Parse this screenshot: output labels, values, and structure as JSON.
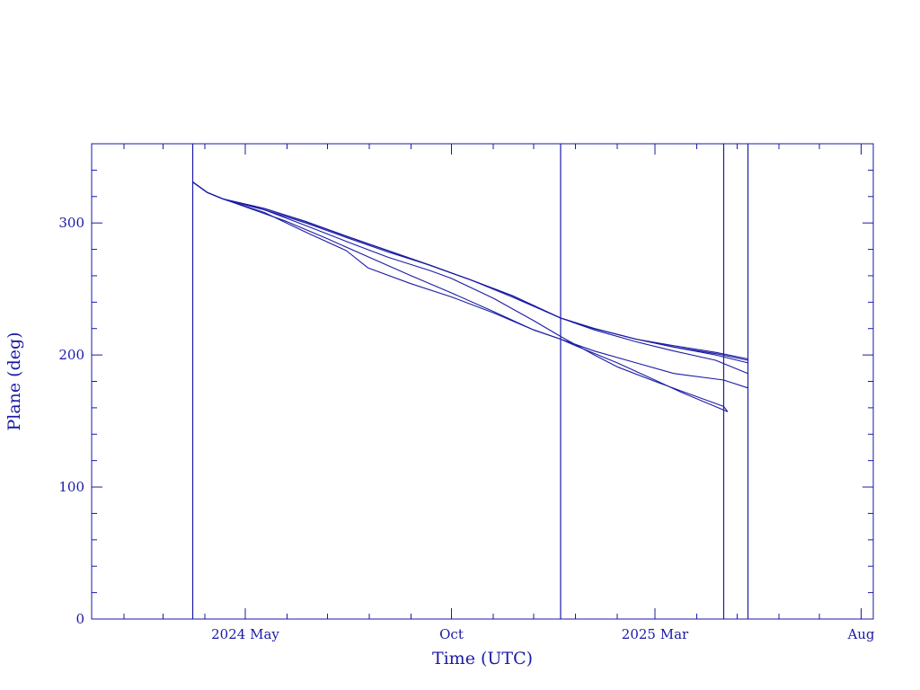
{
  "chart_data": {
    "type": "line",
    "title": "",
    "xlabel": "Time (UTC)",
    "ylabel": "Plane (deg)",
    "x_axis_type": "date",
    "xlim": [
      "2024-01-08",
      "2025-08-10"
    ],
    "ylim": [
      0,
      360
    ],
    "y_ticks": [
      0,
      100,
      200,
      300
    ],
    "x_tick_labels": [
      {
        "label": "2024 May",
        "date": "2024-05-01"
      },
      {
        "label": "Oct",
        "date": "2024-10-01"
      },
      {
        "label": "2025 Mar",
        "date": "2025-03-01"
      },
      {
        "label": "Aug",
        "date": "2025-08-01"
      }
    ],
    "grid": false,
    "legend": "none",
    "vertical_markers": [
      "2024-03-23",
      "2024-12-21",
      "2025-04-21",
      "2025-05-09"
    ],
    "color": "#1a1aa6",
    "series": [
      {
        "points": [
          [
            "2024-03-23",
            331
          ],
          [
            "2024-04-03",
            323
          ],
          [
            "2024-04-15",
            318
          ],
          [
            "2024-06-01",
            301
          ],
          [
            "2024-07-01",
            288
          ],
          [
            "2024-08-01",
            274
          ],
          [
            "2024-09-01",
            260
          ],
          [
            "2024-10-01",
            247
          ],
          [
            "2024-11-01",
            233
          ],
          [
            "2024-12-01",
            219
          ],
          [
            "2024-12-21",
            212
          ],
          [
            "2025-01-01",
            207
          ],
          [
            "2025-02-01",
            194
          ],
          [
            "2025-03-01",
            181
          ],
          [
            "2025-03-20",
            172
          ],
          [
            "2025-04-24",
            157
          ]
        ]
      },
      {
        "points": [
          [
            "2024-03-23",
            331
          ],
          [
            "2024-04-03",
            323
          ],
          [
            "2024-04-15",
            318
          ],
          [
            "2024-05-15",
            308
          ],
          [
            "2024-06-15",
            293
          ],
          [
            "2024-07-15",
            279
          ],
          [
            "2024-07-31",
            266
          ],
          [
            "2024-09-01",
            254
          ],
          [
            "2024-10-01",
            244
          ],
          [
            "2024-11-01",
            232
          ],
          [
            "2024-12-01",
            219
          ],
          [
            "2024-12-21",
            212
          ],
          [
            "2025-01-15",
            203
          ],
          [
            "2025-02-15",
            194
          ],
          [
            "2025-03-15",
            186
          ],
          [
            "2025-04-21",
            181
          ],
          [
            "2025-05-09",
            175
          ]
        ]
      },
      {
        "points": [
          [
            "2024-03-23",
            331
          ],
          [
            "2024-04-03",
            323
          ],
          [
            "2024-04-15",
            318
          ],
          [
            "2024-05-15",
            310
          ],
          [
            "2024-06-15",
            298
          ],
          [
            "2024-07-15",
            286
          ],
          [
            "2024-08-15",
            274
          ],
          [
            "2024-09-15",
            264
          ],
          [
            "2024-10-01",
            258
          ],
          [
            "2024-11-01",
            243
          ],
          [
            "2024-12-01",
            226
          ],
          [
            "2024-12-21",
            214
          ],
          [
            "2025-01-15",
            200
          ],
          [
            "2025-02-01",
            191
          ],
          [
            "2025-03-01",
            180
          ],
          [
            "2025-04-21",
            161
          ],
          [
            "2025-04-24",
            157
          ]
        ]
      },
      {
        "points": [
          [
            "2024-03-23",
            331
          ],
          [
            "2024-04-03",
            323
          ],
          [
            "2024-04-15",
            318
          ],
          [
            "2024-05-15",
            310
          ],
          [
            "2024-06-15",
            300
          ],
          [
            "2024-07-15",
            289
          ],
          [
            "2024-08-15",
            278
          ],
          [
            "2024-09-15",
            268
          ],
          [
            "2024-10-15",
            257
          ],
          [
            "2024-11-15",
            244
          ],
          [
            "2024-12-21",
            228
          ],
          [
            "2025-01-15",
            219
          ],
          [
            "2025-02-15",
            210
          ],
          [
            "2025-03-15",
            203
          ],
          [
            "2025-04-15",
            196
          ],
          [
            "2025-05-09",
            186
          ]
        ]
      },
      {
        "points": [
          [
            "2024-03-23",
            331
          ],
          [
            "2024-04-03",
            323
          ],
          [
            "2024-04-15",
            318
          ],
          [
            "2024-05-15",
            311
          ],
          [
            "2024-06-15",
            301
          ],
          [
            "2024-07-15",
            290
          ],
          [
            "2024-08-15",
            279
          ],
          [
            "2024-09-15",
            268
          ],
          [
            "2024-10-15",
            257
          ],
          [
            "2024-11-15",
            245
          ],
          [
            "2024-12-21",
            228
          ],
          [
            "2025-01-15",
            220
          ],
          [
            "2025-02-15",
            212
          ],
          [
            "2025-03-15",
            206
          ],
          [
            "2025-04-15",
            200
          ],
          [
            "2025-05-09",
            194
          ]
        ]
      },
      {
        "points": [
          [
            "2024-03-23",
            331
          ],
          [
            "2024-04-03",
            323
          ],
          [
            "2024-04-15",
            318
          ],
          [
            "2024-05-15",
            311
          ],
          [
            "2024-06-15",
            301
          ],
          [
            "2024-07-15",
            290
          ],
          [
            "2024-08-15",
            279
          ],
          [
            "2024-09-15",
            268
          ],
          [
            "2024-10-15",
            257
          ],
          [
            "2024-11-15",
            245
          ],
          [
            "2024-12-21",
            228
          ],
          [
            "2025-01-15",
            220
          ],
          [
            "2025-02-15",
            212
          ],
          [
            "2025-03-15",
            207
          ],
          [
            "2025-04-15",
            202
          ],
          [
            "2025-05-09",
            197
          ]
        ]
      },
      {
        "points": [
          [
            "2024-03-23",
            331
          ],
          [
            "2024-04-03",
            323
          ],
          [
            "2024-04-15",
            318
          ],
          [
            "2024-05-15",
            311
          ],
          [
            "2024-06-15",
            301
          ],
          [
            "2024-07-15",
            290
          ],
          [
            "2024-08-15",
            279
          ],
          [
            "2024-09-15",
            268
          ],
          [
            "2024-10-15",
            257
          ],
          [
            "2024-11-15",
            245
          ],
          [
            "2024-12-21",
            228
          ],
          [
            "2025-01-15",
            220
          ],
          [
            "2025-02-15",
            212
          ],
          [
            "2025-03-15",
            206
          ],
          [
            "2025-04-15",
            201
          ],
          [
            "2025-05-09",
            196
          ]
        ]
      }
    ]
  }
}
